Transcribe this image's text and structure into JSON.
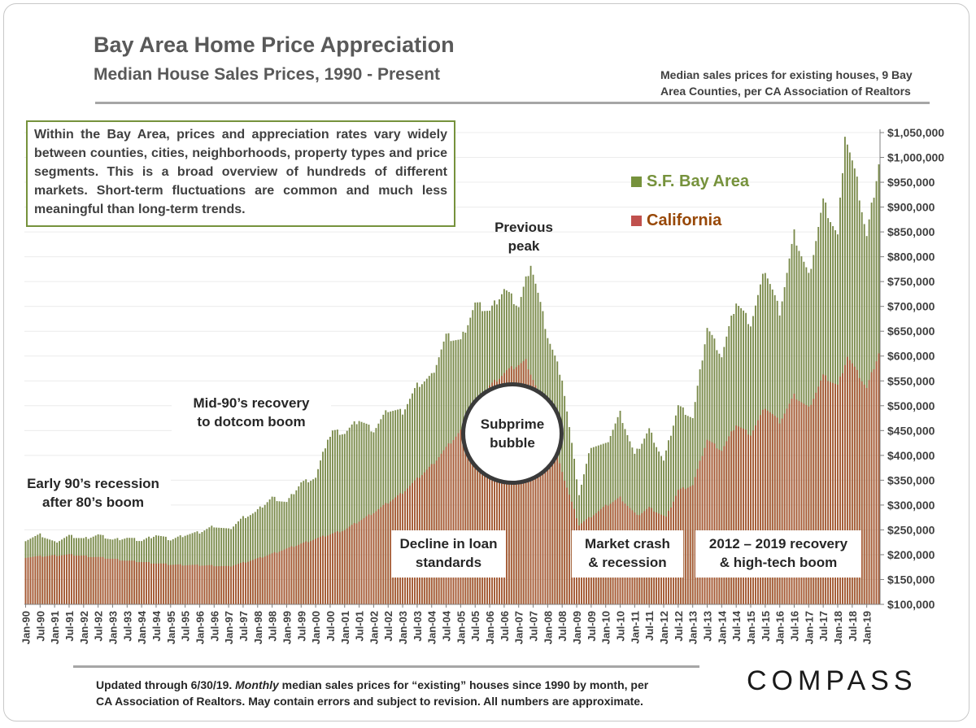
{
  "header": {
    "title": "Bay Area Home Price Appreciation",
    "subtitle": "Median House Sales Prices, 1990 - Present",
    "source": "Median sales prices for existing houses, 9 Bay Area Counties, per CA Association of Realtors"
  },
  "info_box": "Within the Bay Area, prices and appreciation rates vary widely between counties, cities, neighborhoods, property types and price segments. This is a broad overview of hundreds of different markets. Short-term fluctuations are common and much less meaningful than long-term trends.",
  "annotations": {
    "early90s_l1": "Early 90’s recession",
    "early90s_l2": "after 80’s boom",
    "mid90s_l1": "Mid-90’s recovery",
    "mid90s_l2": "to dotcom boom",
    "decline_l1": "Decline in loan",
    "decline_l2": "standards",
    "crash_l1": "Market crash",
    "crash_l2": "& recession",
    "recovery_l1": "2012 – 2019 recovery",
    "recovery_l2": "& high-tech boom",
    "bubble_l1": "Subprime",
    "bubble_l2": "bubble",
    "peak_l1": "Previous",
    "peak_l2": "peak"
  },
  "footer": {
    "line1_pre": "Updated through 6/30/19. ",
    "line1_em": "Monthly",
    "line1_post": " median sales prices for “existing” houses since 1990 by month, per",
    "line2": "CA Association of Realtors.  May contain errors and subject to revision. All numbers are approximate."
  },
  "logo": "COMPASS",
  "colors": {
    "bay_area": "#76923c",
    "california": "#c0504d",
    "bay_area_bar": "#7a8a4a",
    "california_bar": "#a85a36"
  },
  "chart_data": {
    "type": "bar",
    "y_axis": {
      "min": 100000,
      "max": 1050000,
      "step": 50000,
      "labels": [
        "$100,000",
        "$150,000",
        "$200,000",
        "$250,000",
        "$300,000",
        "$350,000",
        "$400,000",
        "$450,000",
        "$500,000",
        "$550,000",
        "$600,000",
        "$650,000",
        "$700,000",
        "$750,000",
        "$800,000",
        "$850,000",
        "$900,000",
        "$950,000",
        "$1,000,000",
        "$1,050,000"
      ],
      "position": "right"
    },
    "x_axis": {
      "start": "Jan-90",
      "end": "Jun-19",
      "labels": [
        "Jan-90",
        "Jul-90",
        "Jan-91",
        "Jul-91",
        "Jan-92",
        "Jul-92",
        "Jan-93",
        "Jul-93",
        "Jan-94",
        "Jul-94",
        "Jan-95",
        "Jul-95",
        "Jan-96",
        "Jul-96",
        "Jan-97",
        "Jul-97",
        "Jan-98",
        "Jul-98",
        "Jan-99",
        "Jul-99",
        "Jan-00",
        "Jul-00",
        "Jan-01",
        "Jul-01",
        "Jan-02",
        "Jul-02",
        "Jan-03",
        "Jul-03",
        "Jan-04",
        "Jul-04",
        "Jan-05",
        "Jul-05",
        "Jan-06",
        "Jul-06",
        "Jan-07",
        "Jul-07",
        "Jan-08",
        "Jul-08",
        "Jan-09",
        "Jul-09",
        "Jan-10",
        "Jul-10",
        "Jan-11",
        "Jul-11",
        "Jan-12",
        "Jul-12",
        "Jan-13",
        "Jul-13",
        "Jan-14",
        "Jul-14",
        "Jan-15",
        "Jul-15",
        "Jan-16",
        "Jul-16",
        "Jan-17",
        "Jul-17",
        "Jan-18",
        "Jul-18",
        "Jan-19"
      ]
    },
    "grid": true,
    "legend": {
      "placement": "top-right"
    },
    "series": [
      {
        "name": "S.F. Bay Area",
        "anchors": [
          [
            "1990-01",
            230000
          ],
          [
            "1990-07",
            240000
          ],
          [
            "1991-01",
            225000
          ],
          [
            "1991-07",
            238000
          ],
          [
            "1992-01",
            232000
          ],
          [
            "1992-07",
            240000
          ],
          [
            "1993-01",
            230000
          ],
          [
            "1993-07",
            234000
          ],
          [
            "1994-01",
            228000
          ],
          [
            "1994-07",
            240000
          ],
          [
            "1995-01",
            230000
          ],
          [
            "1995-07",
            240000
          ],
          [
            "1996-01",
            245000
          ],
          [
            "1996-07",
            258000
          ],
          [
            "1997-01",
            250000
          ],
          [
            "1997-07",
            275000
          ],
          [
            "1997-12",
            285000
          ],
          [
            "1998-07",
            315000
          ],
          [
            "1999-01",
            305000
          ],
          [
            "1999-07",
            345000
          ],
          [
            "2000-01",
            355000
          ],
          [
            "2000-07",
            450000
          ],
          [
            "2001-01",
            445000
          ],
          [
            "2001-07",
            472000
          ],
          [
            "2002-01",
            450000
          ],
          [
            "2002-07",
            492000
          ],
          [
            "2003-01",
            488000
          ],
          [
            "2003-07",
            540000
          ],
          [
            "2004-01",
            560000
          ],
          [
            "2004-07",
            640000
          ],
          [
            "2005-01",
            630000
          ],
          [
            "2005-07",
            705000
          ],
          [
            "2006-01",
            690000
          ],
          [
            "2006-07",
            735000
          ],
          [
            "2007-01",
            700000
          ],
          [
            "2007-06",
            788000
          ],
          [
            "2008-01",
            640000
          ],
          [
            "2008-07",
            555000
          ],
          [
            "2009-02",
            322000
          ],
          [
            "2009-07",
            420000
          ],
          [
            "2010-01",
            420000
          ],
          [
            "2010-07",
            485000
          ],
          [
            "2011-01",
            400000
          ],
          [
            "2011-07",
            452000
          ],
          [
            "2012-01",
            388000
          ],
          [
            "2012-07",
            500000
          ],
          [
            "2013-01",
            475000
          ],
          [
            "2013-07",
            658000
          ],
          [
            "2014-01",
            600000
          ],
          [
            "2014-07",
            710000
          ],
          [
            "2015-01",
            665000
          ],
          [
            "2015-07",
            775000
          ],
          [
            "2016-01",
            690000
          ],
          [
            "2016-07",
            845000
          ],
          [
            "2017-01",
            760000
          ],
          [
            "2017-07",
            910000
          ],
          [
            "2018-01",
            840000
          ],
          [
            "2018-04",
            1050000
          ],
          [
            "2018-09",
            950000
          ],
          [
            "2019-01",
            840000
          ],
          [
            "2019-06",
            990000
          ]
        ]
      },
      {
        "name": "California",
        "anchors": [
          [
            "1990-01",
            195000
          ],
          [
            "1991-07",
            200000
          ],
          [
            "1992-07",
            195000
          ],
          [
            "1993-07",
            188000
          ],
          [
            "1995-01",
            180000
          ],
          [
            "1996-07",
            178000
          ],
          [
            "1997-01",
            176000
          ],
          [
            "1998-01",
            192000
          ],
          [
            "1999-01",
            212000
          ],
          [
            "2000-01",
            232000
          ],
          [
            "2001-01",
            250000
          ],
          [
            "2002-01",
            285000
          ],
          [
            "2003-01",
            325000
          ],
          [
            "2004-01",
            380000
          ],
          [
            "2005-01",
            450000
          ],
          [
            "2006-01",
            540000
          ],
          [
            "2006-08",
            570000
          ],
          [
            "2007-04",
            590000
          ],
          [
            "2008-01",
            480000
          ],
          [
            "2008-08",
            350000
          ],
          [
            "2009-02",
            260000
          ],
          [
            "2010-01",
            298000
          ],
          [
            "2010-07",
            315000
          ],
          [
            "2011-02",
            278000
          ],
          [
            "2011-07",
            295000
          ],
          [
            "2012-02",
            275000
          ],
          [
            "2012-07",
            330000
          ],
          [
            "2013-01",
            340000
          ],
          [
            "2013-07",
            432000
          ],
          [
            "2014-01",
            410000
          ],
          [
            "2014-07",
            462000
          ],
          [
            "2015-01",
            442000
          ],
          [
            "2015-07",
            497000
          ],
          [
            "2016-01",
            468000
          ],
          [
            "2016-07",
            520000
          ],
          [
            "2017-01",
            495000
          ],
          [
            "2017-07",
            560000
          ],
          [
            "2018-01",
            540000
          ],
          [
            "2018-05",
            600000
          ],
          [
            "2019-01",
            535000
          ],
          [
            "2019-06",
            607000
          ]
        ]
      }
    ]
  }
}
